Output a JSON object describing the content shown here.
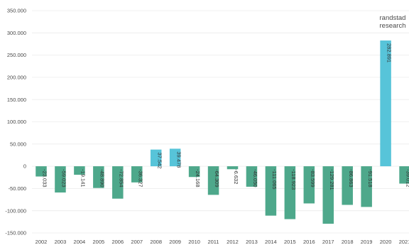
{
  "brand": {
    "line1": "randstad",
    "line2": "research"
  },
  "colors": {
    "negative": "#4ea88b",
    "positive": "#57c4d9",
    "grid": "#ececec",
    "text": "#4a4a4a"
  },
  "chart_data": {
    "type": "bar",
    "title": "",
    "xlabel": "",
    "ylabel": "",
    "ylim": [
      -150000,
      350000
    ],
    "yticks": [
      350000,
      300000,
      250000,
      200000,
      150000,
      100000,
      50000,
      0,
      -50000,
      -100000,
      -150000
    ],
    "ytick_labels": [
      "350.000",
      "300.000",
      "250.000",
      "200.000",
      "150.000",
      "100.000",
      "50.000",
      "0",
      "-50.000",
      "-100.000",
      "-150.000"
    ],
    "grid": true,
    "categories": [
      "2002",
      "2003",
      "2004",
      "2005",
      "2006",
      "2007",
      "2008",
      "2009",
      "2010",
      "2011",
      "2012",
      "2013",
      "2014",
      "2015",
      "2016",
      "2017",
      "2018",
      "2019",
      "2020",
      "2021"
    ],
    "values": [
      -23033,
      -59023,
      -19141,
      -48890,
      -72854,
      -36327,
      37542,
      39478,
      -24168,
      -64309,
      -6632,
      -46050,
      -111065,
      -118923,
      -83599,
      -129281,
      -86863,
      -91518,
      282891,
      -39012
    ],
    "labels": [
      "-23.033",
      "-59.023",
      "-19.141",
      "-48.890",
      "-72.854",
      "-36.327",
      "37.542",
      "39.478",
      "-24.168",
      "-64.309",
      "-6.632",
      "-46.050",
      "-111.065",
      "-118.923",
      "-83.599",
      "-129.281",
      "-86.863",
      "-91.518",
      "282.891",
      "-39.012"
    ]
  }
}
